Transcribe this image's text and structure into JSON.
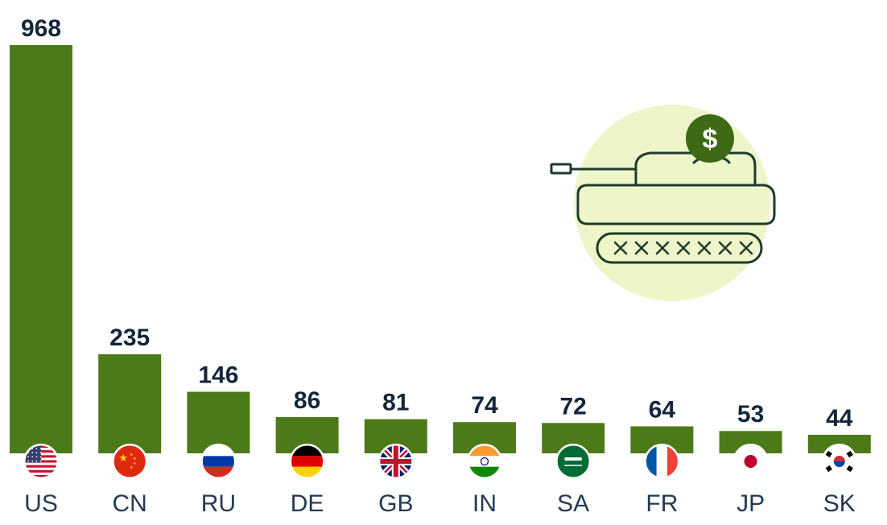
{
  "colors": {
    "bar": "#4d7a19",
    "value_text": "#13263a",
    "label_text": "#233a52",
    "illustration_bg": "#eef5c9",
    "illustration_line": "#1e3a2a",
    "coin": "#3f6a15"
  },
  "icon": "tank-with-dollar-coin-icon",
  "coin_symbol": "$",
  "chart_data": {
    "type": "bar",
    "categories": [
      "US",
      "CN",
      "RU",
      "DE",
      "GB",
      "IN",
      "SA",
      "FR",
      "JP",
      "SK"
    ],
    "values": [
      968,
      235,
      146,
      86,
      81,
      74,
      72,
      64,
      53,
      44
    ],
    "flags": [
      "us-flag-icon",
      "cn-flag-icon",
      "ru-flag-icon",
      "de-flag-icon",
      "gb-flag-icon",
      "in-flag-icon",
      "sa-flag-icon",
      "fr-flag-icon",
      "jp-flag-icon",
      "kr-flag-icon"
    ],
    "title": "",
    "xlabel": "",
    "ylabel": "",
    "ylim": [
      0,
      968
    ],
    "grid": false,
    "legend": "none"
  }
}
